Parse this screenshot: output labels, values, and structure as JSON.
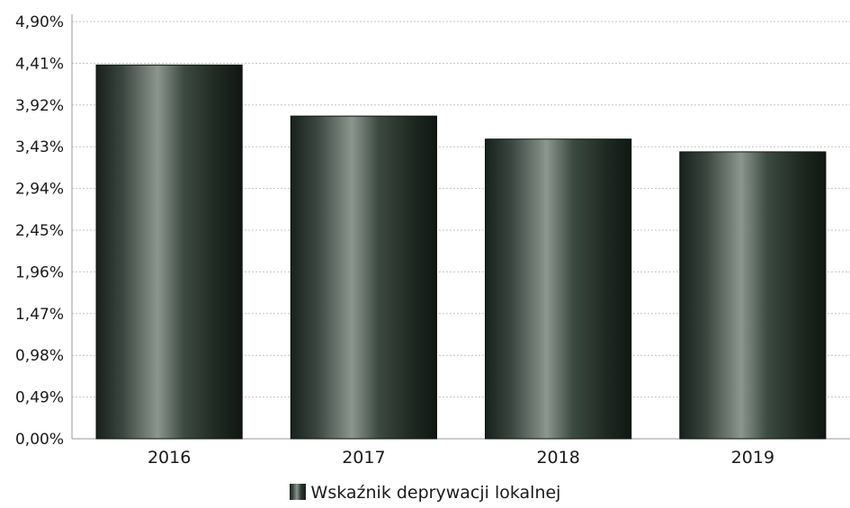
{
  "chart_data": {
    "type": "bar",
    "categories": [
      "2016",
      "2017",
      "2018",
      "2019"
    ],
    "series": [
      {
        "name": "Wskaźnik deprywacji lokalnej",
        "values": [
          4.39,
          3.79,
          3.52,
          3.37
        ]
      }
    ],
    "y_ticks": [
      "0,00%",
      "0,49%",
      "0,98%",
      "1,47%",
      "1,96%",
      "2,45%",
      "2,94%",
      "3,43%",
      "3,92%",
      "4,41%",
      "4,90%"
    ],
    "ylim": [
      0,
      4.9
    ],
    "grid": true,
    "legend_position": "bottom",
    "bar_color": "#2b3a31"
  }
}
